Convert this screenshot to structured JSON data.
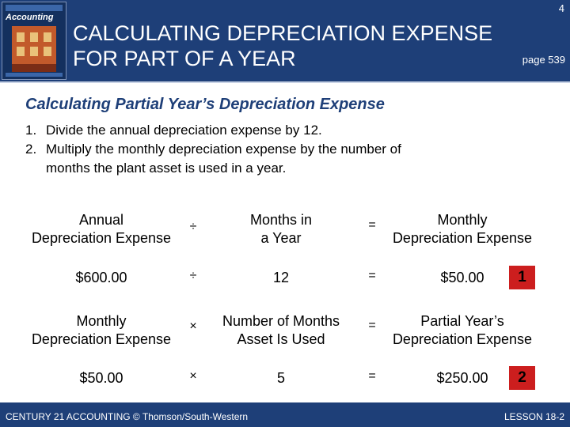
{
  "header": {
    "slide_number": "4",
    "title_line1": "CALCULATING DEPRECIATION EXPENSE",
    "title_line2": "FOR PART OF A YEAR",
    "page_ref": "page 539",
    "book_cover_title": "Accounting"
  },
  "content": {
    "subtitle": "Calculating Partial Year’s Depreciation Expense",
    "steps": [
      {
        "num": "1.",
        "text": "Divide the annual depreciation expense by 12."
      },
      {
        "num": "2.",
        "text": "Multiply the monthly depreciation expense by the number of"
      },
      {
        "num": "",
        "text": "months the plant asset is used in a year."
      }
    ]
  },
  "formulas": {
    "row1": {
      "col1_line1": "Annual",
      "col1_line2": "Depreciation Expense",
      "op1": "÷",
      "col2_line1": "Months in",
      "col2_line2": "a Year",
      "op2": "=",
      "col3_line1": "Monthly",
      "col3_line2": "Depreciation Expense"
    },
    "row2": {
      "col1": "$600.00",
      "op1": "÷",
      "col2": "12",
      "op2": "=",
      "col3": "$50.00",
      "badge": "1"
    },
    "row3": {
      "col1_line1": "Monthly",
      "col1_line2": "Depreciation Expense",
      "op1": "×",
      "col2_line1": "Number of Months",
      "col2_line2": "Asset Is Used",
      "op2": "=",
      "col3_line1": "Partial Year’s",
      "col3_line2": "Depreciation Expense"
    },
    "row4": {
      "col1": "$50.00",
      "op1": "×",
      "col2": "5",
      "op2": "=",
      "col3": "$250.00",
      "badge": "2"
    }
  },
  "footer": {
    "left": "CENTURY 21 ACCOUNTING © Thomson/South-Western",
    "right": "LESSON 18-2"
  },
  "colors": {
    "brand_blue": "#1e3f78",
    "badge_red": "#cc1e1e"
  }
}
